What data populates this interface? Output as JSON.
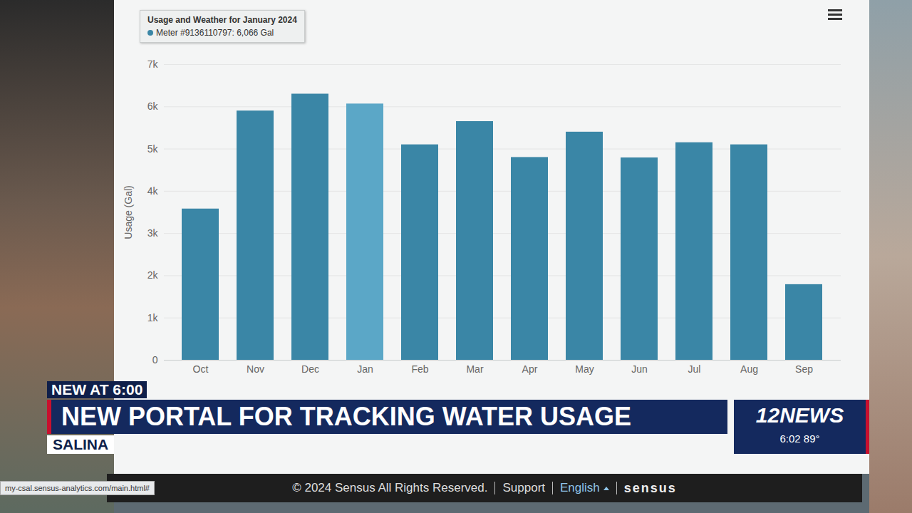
{
  "chart_data": {
    "type": "bar",
    "title": "Usage and Weather for January 2024",
    "subtitle": "Meter #9136110797: 6,066 Gal",
    "y_label": "Usage (Gal)",
    "categories": [
      "Oct",
      "Nov",
      "Dec",
      "Jan",
      "Feb",
      "Mar",
      "Apr",
      "May",
      "Jun",
      "Jul",
      "Aug",
      "Sep"
    ],
    "values": [
      3580,
      5900,
      6300,
      6066,
      5100,
      5650,
      4800,
      5400,
      4790,
      5150,
      5100,
      1790
    ],
    "colors": [
      "#3a86a6",
      "#3a86a6",
      "#3a86a6",
      "#5ba7c7",
      "#3a86a6",
      "#3a86a6",
      "#3a86a6",
      "#3a86a6",
      "#3a86a6",
      "#3a86a6",
      "#3a86a6",
      "#3a86a6"
    ],
    "ylim": [
      0,
      7000
    ],
    "yticks": [
      0,
      {
        "value": 1000,
        "label": "1k"
      },
      {
        "value": 2000,
        "label": "2k"
      },
      {
        "value": 3000,
        "label": "3k"
      },
      {
        "value": 4000,
        "label": "4k"
      },
      {
        "value": 5000,
        "label": "5k"
      },
      {
        "value": 6000,
        "label": "6k"
      },
      {
        "value": 7000,
        "label": "7k"
      }
    ],
    "grid": true,
    "annotations": [
      "NEW AT 6:00",
      "NEW PORTAL FOR TRACKING WATER USAGE",
      "SALINA",
      "12NEWS",
      "6:02",
      "89°",
      "© 2024 Sensus All Rights Reserved.",
      "Support",
      "English",
      "sensus",
      "my-csal.sensus-analytics.com/main.html#"
    ]
  }
}
